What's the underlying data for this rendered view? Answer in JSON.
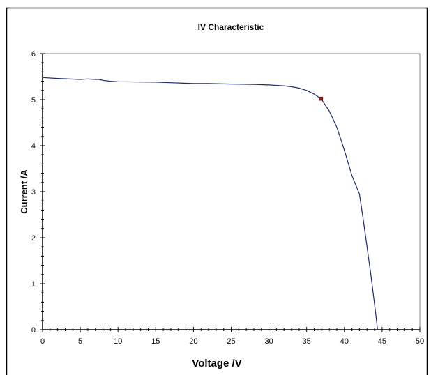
{
  "chart_data": {
    "type": "line",
    "title": "IV Characteristic",
    "xlabel": "Voltage /V",
    "ylabel": "Current /A",
    "xlim": [
      0,
      50
    ],
    "ylim": [
      0,
      6
    ],
    "x_ticks": [
      0,
      5,
      10,
      15,
      20,
      25,
      30,
      35,
      40,
      45,
      50
    ],
    "y_ticks": [
      0,
      1,
      2,
      3,
      4,
      5,
      6
    ],
    "grid": false,
    "legend": "none",
    "colors": {
      "line": "#1f2a6b",
      "marker": "#8b1a1a",
      "axis": "#000000",
      "plot_border": "#808080"
    },
    "series": [
      {
        "x": [
          0,
          2,
          5,
          6,
          7,
          7.5,
          8,
          9,
          10,
          15,
          20,
          22,
          25,
          28,
          30,
          32,
          33,
          34,
          35,
          36,
          36.9,
          38,
          39,
          40,
          41,
          42,
          42.5,
          43,
          43.5,
          44,
          44.4
        ],
        "values": [
          5.48,
          5.46,
          5.44,
          5.45,
          5.44,
          5.44,
          5.42,
          5.4,
          5.39,
          5.38,
          5.35,
          5.35,
          5.34,
          5.33,
          5.32,
          5.3,
          5.28,
          5.25,
          5.2,
          5.12,
          5.02,
          4.75,
          4.4,
          3.9,
          3.35,
          2.95,
          2.4,
          1.8,
          1.2,
          0.55,
          0
        ]
      }
    ],
    "highlight_point": {
      "x": 36.9,
      "y": 5.02
    }
  }
}
